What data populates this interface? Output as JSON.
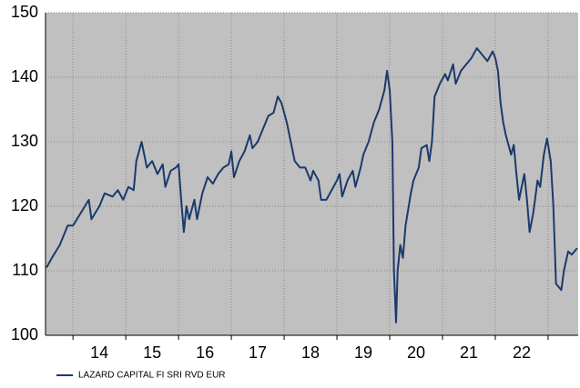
{
  "chart_data": {
    "type": "line",
    "series": [
      {
        "name": "LAZARD CAPITAL FI SRI RVD EUR",
        "color": "#1a3a6b",
        "x": [
          2013.5,
          2013.6,
          2013.75,
          2013.9,
          2014.0,
          2014.15,
          2014.3,
          2014.35,
          2014.5,
          2014.6,
          2014.75,
          2014.85,
          2014.95,
          2015.05,
          2015.15,
          2015.2,
          2015.3,
          2015.4,
          2015.5,
          2015.6,
          2015.7,
          2015.75,
          2015.85,
          2015.95,
          2016.0,
          2016.05,
          2016.1,
          2016.15,
          2016.2,
          2016.3,
          2016.35,
          2016.45,
          2016.55,
          2016.65,
          2016.75,
          2016.85,
          2016.95,
          2017.0,
          2017.05,
          2017.15,
          2017.25,
          2017.35,
          2017.4,
          2017.5,
          2017.6,
          2017.7,
          2017.8,
          2017.88,
          2017.95,
          2018.05,
          2018.15,
          2018.2,
          2018.3,
          2018.4,
          2018.5,
          2018.55,
          2018.65,
          2018.7,
          2018.8,
          2018.9,
          2019.0,
          2019.05,
          2019.1,
          2019.2,
          2019.3,
          2019.35,
          2019.45,
          2019.5,
          2019.6,
          2019.7,
          2019.8,
          2019.9,
          2019.95,
          2020.0,
          2020.05,
          2020.08,
          2020.12,
          2020.15,
          2020.2,
          2020.25,
          2020.3,
          2020.4,
          2020.45,
          2020.55,
          2020.6,
          2020.7,
          2020.75,
          2020.8,
          2020.85,
          2020.95,
          2021.05,
          2021.1,
          2021.2,
          2021.25,
          2021.35,
          2021.45,
          2021.55,
          2021.65,
          2021.75,
          2021.85,
          2021.95,
          2022.0,
          2022.05,
          2022.1,
          2022.15,
          2022.2,
          2022.3,
          2022.35,
          2022.4,
          2022.45,
          2022.5,
          2022.55,
          2022.6,
          2022.65,
          2022.72,
          2022.8,
          2022.85,
          2022.92,
          2022.98,
          2023.05,
          2023.1,
          2023.15,
          2023.2,
          2023.25,
          2023.3,
          2023.38,
          2023.45,
          2023.55
        ],
        "values": [
          110.5,
          112,
          114,
          117,
          117,
          119,
          121,
          118,
          120,
          122,
          121.5,
          122.5,
          121,
          123,
          122.5,
          127,
          130,
          126,
          127,
          125,
          126.5,
          123,
          125.5,
          126,
          126.5,
          121,
          116,
          120,
          118,
          121,
          118,
          122,
          124.5,
          123.5,
          125,
          126,
          126.5,
          128.5,
          124.5,
          127,
          128.5,
          131,
          129,
          130,
          132,
          134,
          134.5,
          137,
          136,
          133,
          129,
          127,
          126,
          126,
          124,
          125.5,
          124,
          121,
          121,
          122.5,
          124,
          125,
          121.5,
          124,
          125.5,
          123,
          126,
          128,
          130,
          133,
          135,
          138,
          141,
          138,
          130,
          110,
          102,
          110,
          114,
          112,
          117,
          122,
          124,
          126,
          129,
          129.5,
          127,
          130,
          137,
          139,
          140.5,
          139.5,
          142,
          139,
          141,
          142,
          143,
          144.5,
          143.5,
          142.5,
          144,
          143,
          141,
          136,
          133,
          131,
          128,
          129.5,
          125,
          121,
          123,
          125,
          121,
          116,
          119,
          124,
          123,
          128,
          130.5,
          127,
          120,
          108,
          107.5,
          107,
          110,
          113,
          112.5,
          113.5
        ]
      }
    ],
    "xlim": [
      2013.48,
      2023.57
    ],
    "ylim": [
      100,
      150
    ],
    "yticks": [
      100,
      110,
      120,
      130,
      140,
      150
    ],
    "xticks": [
      {
        "value": 2014.5,
        "label": "14"
      },
      {
        "value": 2015.5,
        "label": "15"
      },
      {
        "value": 2016.5,
        "label": "16"
      },
      {
        "value": 2017.5,
        "label": "17"
      },
      {
        "value": 2018.5,
        "label": "18"
      },
      {
        "value": 2019.5,
        "label": "19"
      },
      {
        "value": 2020.5,
        "label": "20"
      },
      {
        "value": 2021.5,
        "label": "21"
      },
      {
        "value": 2022.5,
        "label": "22"
      }
    ],
    "xgrid": [
      2014,
      2015,
      2016,
      2017,
      2018,
      2019,
      2020,
      2021,
      2022,
      2023
    ],
    "grid": true
  }
}
